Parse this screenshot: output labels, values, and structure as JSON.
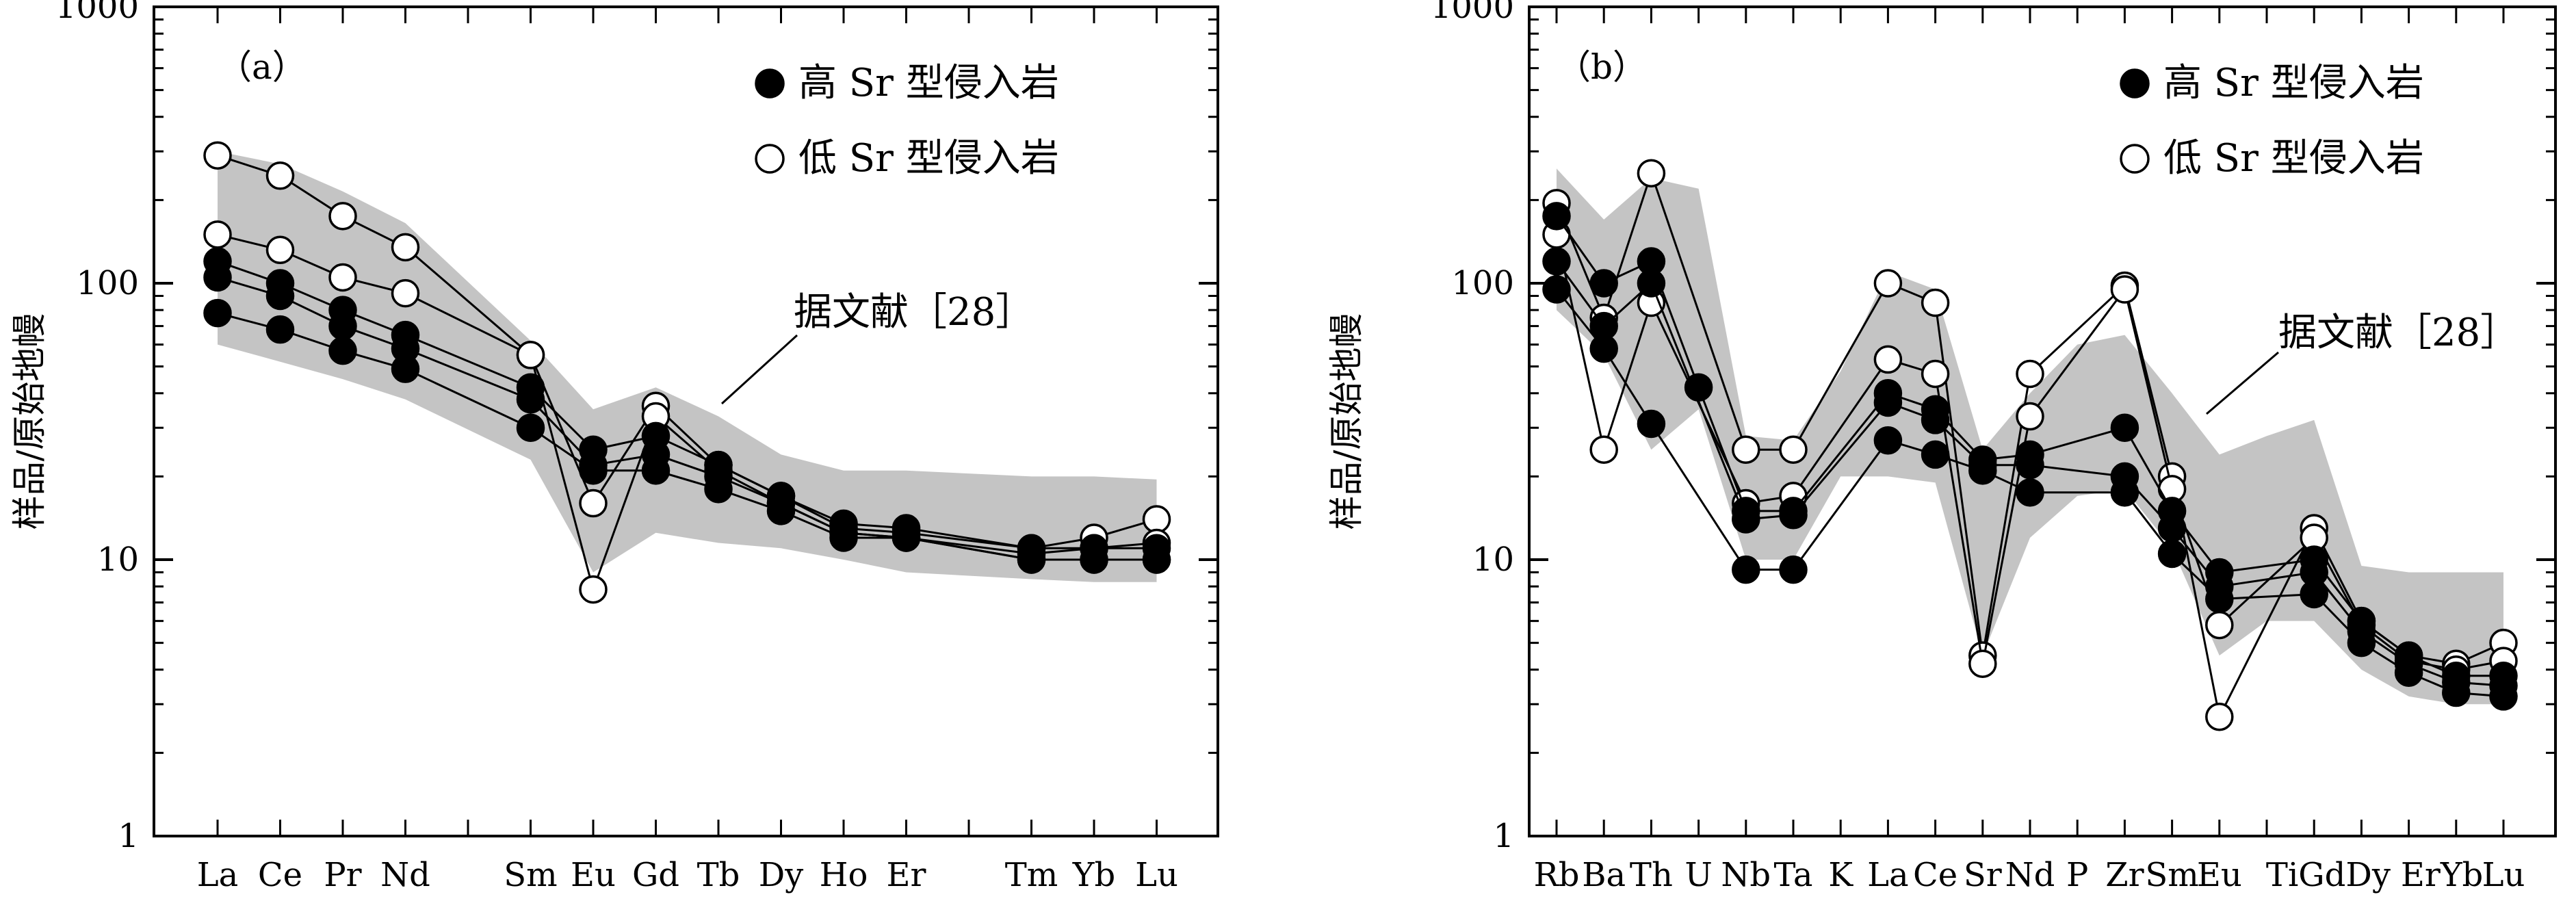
{
  "chart_data": [
    {
      "type": "line",
      "panel_label": "（a）",
      "ylabel": "样品/原始地幔",
      "yscale": "log",
      "ylim": [
        1,
        1000
      ],
      "y_ticks": [
        "1",
        "10",
        "100",
        "1000"
      ],
      "categories": [
        "La",
        "Ce",
        "Pr",
        "Nd",
        "",
        "Sm",
        "Eu",
        "Gd",
        "Tb",
        "Dy",
        "Ho",
        "Er",
        "",
        "Tm",
        "Yb",
        "Lu"
      ],
      "legend": {
        "placement": "top-right",
        "items": [
          {
            "label": "高 Sr 型侵入岩",
            "marker": "filled"
          },
          {
            "label": "低 Sr 型侵入岩",
            "marker": "open"
          }
        ]
      },
      "annotation": "据文献［28］",
      "reference_band": {
        "upper": [
          300,
          270,
          215,
          165,
          null,
          62,
          35,
          42,
          33,
          24,
          21,
          21,
          null,
          20,
          20,
          19.5
        ],
        "lower": [
          60,
          52,
          45,
          38,
          null,
          23,
          9,
          12.5,
          11.5,
          11,
          10,
          9,
          null,
          8.5,
          8.3,
          8.3
        ]
      },
      "series": [
        {
          "marker": "open",
          "values": [
            290,
            245,
            175,
            135,
            null,
            55,
            16,
            36,
            22,
            17,
            13,
            12.5,
            null,
            11,
            12,
            14
          ]
        },
        {
          "marker": "open",
          "values": [
            150,
            132,
            105,
            92,
            null,
            55,
            7.8,
            33,
            21,
            16,
            12.5,
            12,
            null,
            10.5,
            11,
            11.5
          ]
        },
        {
          "marker": "filled",
          "values": [
            120,
            100,
            80,
            65,
            null,
            42,
            25,
            28,
            22,
            17,
            13.5,
            13,
            null,
            11,
            11,
            11
          ]
        },
        {
          "marker": "filled",
          "values": [
            105,
            90,
            70,
            58,
            null,
            38,
            22,
            24,
            20,
            16,
            12.5,
            12,
            null,
            10,
            10,
            10
          ]
        },
        {
          "marker": "filled",
          "values": [
            78,
            68,
            57,
            49,
            null,
            30,
            21,
            21,
            18,
            15,
            12,
            12,
            null,
            10,
            10,
            10
          ]
        }
      ]
    },
    {
      "type": "line",
      "panel_label": "（b）",
      "ylabel": "样品/原始地幔",
      "yscale": "log",
      "ylim": [
        1,
        1000
      ],
      "y_ticks": [
        "1",
        "10",
        "100",
        "1000"
      ],
      "categories": [
        "Rb",
        "Ba",
        "Th",
        "U",
        "Nb",
        "Ta",
        "K",
        "La",
        "Ce",
        "Sr",
        "Nd",
        "P",
        "Zr",
        "Sm",
        "Eu",
        "Ti",
        "Gd",
        "Dy",
        "Er",
        "Yb",
        "Lu"
      ],
      "tick_label_text": [
        "Rb",
        "Ba",
        "Th",
        "U",
        "Nb",
        "Ta",
        "K",
        "La",
        "Ce",
        "Sr",
        "Nd",
        "P",
        "Zr",
        "Sm",
        "Eu",
        "TiGdDy",
        "ErYb",
        "Lu"
      ],
      "legend": {
        "placement": "top-right",
        "items": [
          {
            "label": "高 Sr 型侵入岩",
            "marker": "filled"
          },
          {
            "label": "低 Sr 型侵入岩",
            "marker": "open"
          }
        ]
      },
      "annotation": "据文献［28］",
      "reference_band": {
        "upper": [
          260,
          170,
          240,
          220,
          28,
          27,
          48,
          110,
          95,
          25,
          40,
          60,
          65,
          40,
          24,
          28,
          32,
          9.5,
          9,
          9,
          9
        ],
        "lower": [
          80,
          55,
          25,
          35,
          10,
          10,
          20,
          20,
          19,
          4.5,
          12,
          17,
          18,
          11,
          4.5,
          6,
          6,
          4,
          3.2,
          3,
          3
        ]
      },
      "series": [
        {
          "marker": "open",
          "values": [
            195,
            75,
            250,
            null,
            25,
            25,
            null,
            100,
            85,
            4.5,
            47,
            null,
            98,
            20,
            2.7,
            null,
            13,
            6,
            4.5,
            4.2,
            5
          ]
        },
        {
          "marker": "open",
          "values": [
            150,
            25,
            85,
            null,
            16,
            17,
            null,
            53,
            47,
            4.2,
            33,
            null,
            95,
            18,
            5.8,
            null,
            12,
            5.8,
            4.3,
            4.0,
            4.3
          ]
        },
        {
          "marker": "filled",
          "values": [
            175,
            100,
            120,
            42,
            15,
            15,
            null,
            40,
            35,
            23,
            24,
            null,
            30,
            15,
            9,
            null,
            10,
            6,
            4.5,
            3.8,
            3.8
          ]
        },
        {
          "marker": "filled",
          "values": [
            120,
            70,
            100,
            null,
            14,
            14.5,
            null,
            37,
            32,
            22,
            22,
            null,
            20,
            13,
            8,
            null,
            9,
            5.5,
            4.2,
            3.6,
            3.5
          ]
        },
        {
          "marker": "filled",
          "values": [
            95,
            58,
            31,
            null,
            9.2,
            9.2,
            null,
            27,
            24,
            21,
            17.5,
            null,
            17.5,
            10.5,
            7.2,
            null,
            7.5,
            5.0,
            3.9,
            3.3,
            3.2
          ]
        }
      ]
    }
  ]
}
